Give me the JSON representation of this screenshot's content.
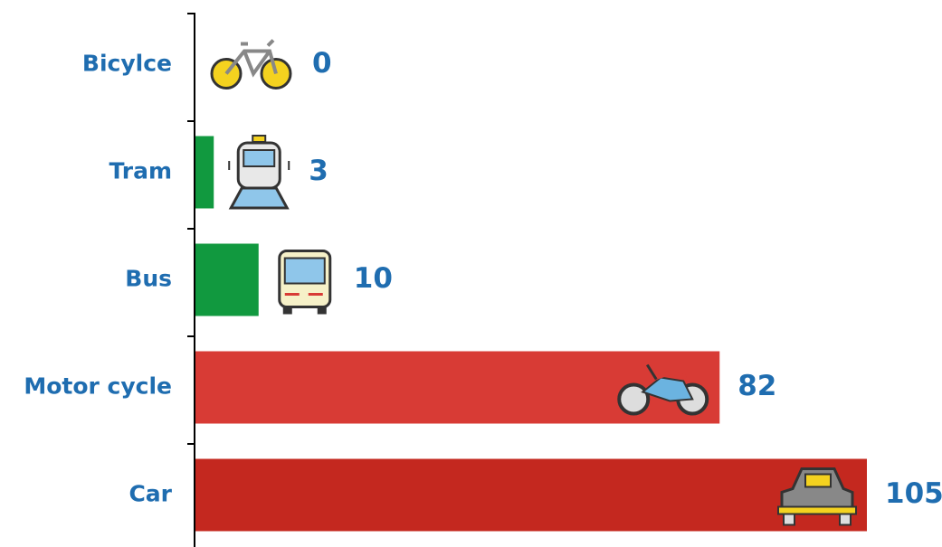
{
  "chart_data": {
    "type": "hbar",
    "categories": [
      "Bicylce",
      "Tram",
      "Bus",
      "Motor cycle",
      "Car"
    ],
    "values": [
      0,
      3,
      10,
      82,
      105
    ],
    "colors": [
      "#11993f",
      "#11993f",
      "#11993f",
      "#d83b35",
      "#c4281f"
    ]
  }
}
